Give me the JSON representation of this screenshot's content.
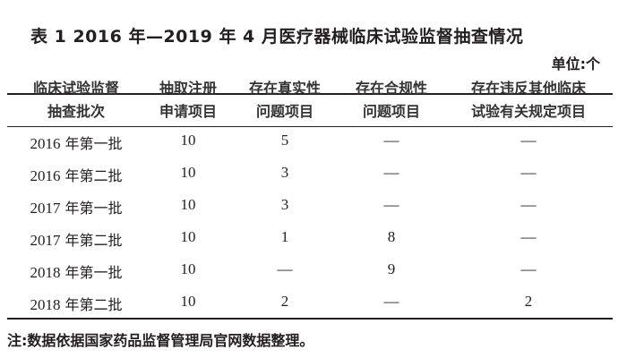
{
  "title": "表 1   2016 年—2019 年 4 月医疗器械临床试验监督抽查情况",
  "unit": "单位:个",
  "headers": [
    {
      "line1": "临床试验监督",
      "line2": "抽查批次"
    },
    {
      "line1": "抽取注册",
      "line2": "申请项目"
    },
    {
      "line1": "存在真实性",
      "line2": "问题项目"
    },
    {
      "line1": "存在合规性",
      "line2": "问题项目"
    },
    {
      "line1": "存在违反其他临床",
      "line2": "试验有关规定项目"
    }
  ],
  "rows": [
    {
      "year": "2016",
      "batch": " 年第一批",
      "sampled": "10",
      "authenticity": "5",
      "compliance": "—",
      "other": "—"
    },
    {
      "year": "2016",
      "batch": " 年第二批",
      "sampled": "10",
      "authenticity": "3",
      "compliance": "—",
      "other": "—"
    },
    {
      "year": "2017",
      "batch": " 年第一批",
      "sampled": "10",
      "authenticity": "3",
      "compliance": "—",
      "other": "—"
    },
    {
      "year": "2017",
      "batch": " 年第二批",
      "sampled": "10",
      "authenticity": "1",
      "compliance": "8",
      "other": "—"
    },
    {
      "year": "2018",
      "batch": " 年第一批",
      "sampled": "10",
      "authenticity": "—",
      "compliance": "9",
      "other": "—"
    },
    {
      "year": "2018",
      "batch": " 年第二批",
      "sampled": "10",
      "authenticity": "2",
      "compliance": "—",
      "other": "2"
    }
  ],
  "note": "注:数据依据国家药品监督管理局官网数据整理。"
}
